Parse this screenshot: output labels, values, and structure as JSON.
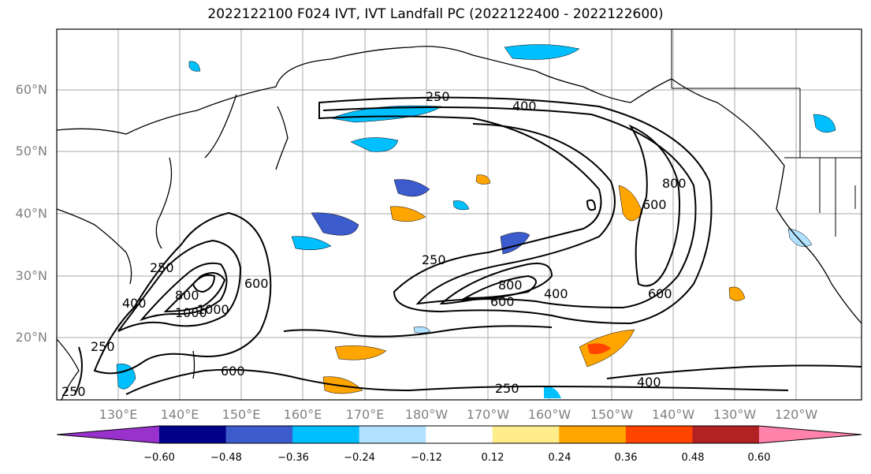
{
  "title": "2022122100 F024 IVT, IVT Landfall PC (2022122400 - 2022122600)",
  "lat_labels": [
    "60°N",
    "50°N",
    "40°N",
    "30°N",
    "20°N"
  ],
  "lon_labels": [
    "130°E",
    "140°E",
    "150°E",
    "160°E",
    "170°E",
    "180°W",
    "170°W",
    "160°W",
    "150°W",
    "140°W",
    "130°W",
    "120°W"
  ],
  "contour_labels": [
    "250",
    "400",
    "250",
    "600",
    "800",
    "250",
    "400",
    "600",
    "800",
    "1000",
    "250",
    "400",
    "600",
    "800",
    "1000",
    "600",
    "400",
    "250",
    "600",
    "250"
  ],
  "colorbar": {
    "colors": [
      "#9932cc",
      "#00008b",
      "#3c5bcc",
      "#00bfff",
      "#b0e2ff",
      "#ffffff",
      "#ffec8b",
      "#ffa500",
      "#ff4500",
      "#b22222",
      "#ff82ab"
    ],
    "tick_labels": [
      "−0.60",
      "−0.48",
      "−0.36",
      "−0.24",
      "−0.12",
      "0.12",
      "0.24",
      "0.36",
      "0.48",
      "0.60"
    ]
  }
}
